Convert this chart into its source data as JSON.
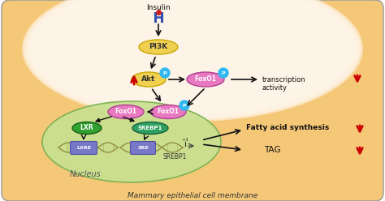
{
  "bg_outer": "#ffffff",
  "bg_cell": "#f5c878",
  "bg_nucleus": "#c8e090",
  "nucleus_edge": "#78b050",
  "border_color": "#999999",
  "title_text": "Mammary epithelial cell membrane",
  "nucleus_label": "Nucleus",
  "insulin_label": "Insulin",
  "pi3k_color": "#f0d050",
  "pi3k_edge": "#c8a800",
  "akt_color": "#f0d050",
  "akt_edge": "#c8a800",
  "foxo1_color": "#e878c0",
  "foxo1_edge": "#b04090",
  "p_bubble_color": "#30b8f0",
  "lxr_color": "#30a030",
  "lxr_edge": "#186018",
  "srebp1_oval_color": "#30a060",
  "srebp1_oval_edge": "#186040",
  "lxre_box_color": "#7878c8",
  "sre_box_color": "#7878c8",
  "box_edge": "#5050a0",
  "red_arrow_color": "#cc0000",
  "receptor_color": "#3050b0",
  "receptor_red": "#cc2020",
  "dna_color": "#909040",
  "transcription_text": "transcription\nactivity",
  "fatty_acid_text": "Fatty acid synthesis",
  "tag_text": "TAG",
  "cell_gradient_color": "#fde8c0",
  "pink_gradient_top": "#fce8d8"
}
